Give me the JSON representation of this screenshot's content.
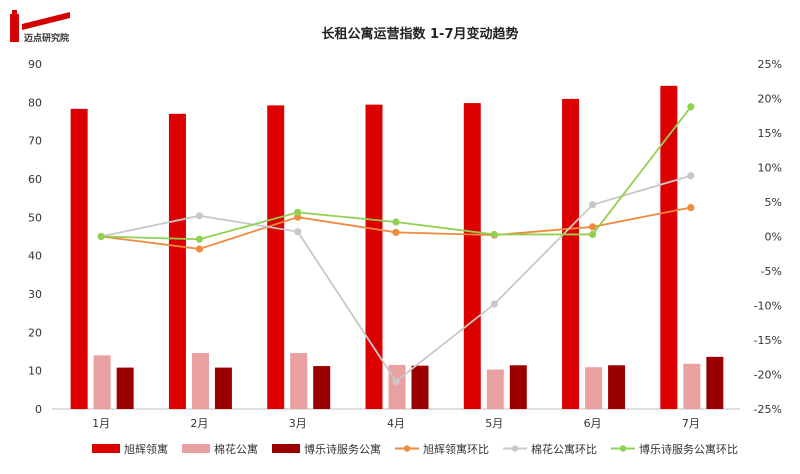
{
  "brand": {
    "name": "迈点研究院",
    "color": "#d50000"
  },
  "chart_data": {
    "type": "bar",
    "title": "长租公寓运营指数 1-7月变动趋势",
    "categories": [
      "1月",
      "2月",
      "3月",
      "4月",
      "5月",
      "6月",
      "7月"
    ],
    "ylim": [
      0,
      90
    ],
    "yticks": [
      0,
      10,
      20,
      30,
      40,
      50,
      60,
      70,
      80,
      90
    ],
    "y2lim": [
      -25,
      25
    ],
    "y2ticks": [
      25,
      20,
      15,
      10,
      5,
      0,
      -5,
      -10,
      -15,
      -20,
      -25
    ],
    "y2tick_labels": [
      "25%",
      "20%",
      "15%",
      "10%",
      "5%",
      "0%",
      "-5%",
      "-10%",
      "-15%",
      "-20%",
      "-25%"
    ],
    "grid": false,
    "legend_position": "bottom",
    "bar_series": [
      {
        "name": "旭辉领寓",
        "color": "#dd0000",
        "values": [
          78.3,
          77.0,
          79.2,
          79.4,
          79.8,
          80.9,
          84.3
        ]
      },
      {
        "name": "棉花公寓",
        "color": "#e8a0a0",
        "values": [
          14.0,
          14.6,
          14.6,
          11.5,
          10.3,
          10.9,
          11.8
        ]
      },
      {
        "name": "博乐诗服务公寓",
        "color": "#9b0000",
        "values": [
          10.8,
          10.8,
          11.2,
          11.3,
          11.4,
          11.4,
          13.6
        ]
      }
    ],
    "line_series": [
      {
        "name": "旭辉领寓环比",
        "color": "#ef8a3e",
        "values": [
          0.0,
          -1.8,
          2.8,
          0.6,
          0.2,
          1.4,
          4.2
        ]
      },
      {
        "name": "棉花公寓环比",
        "color": "#c8c8c8",
        "values": [
          0.0,
          3.0,
          0.7,
          -21.0,
          -9.8,
          4.6,
          8.8
        ]
      },
      {
        "name": "博乐诗服务公寓环比",
        "color": "#92d050",
        "values": [
          0.0,
          -0.4,
          3.5,
          2.1,
          0.3,
          0.3,
          18.8
        ]
      }
    ]
  }
}
